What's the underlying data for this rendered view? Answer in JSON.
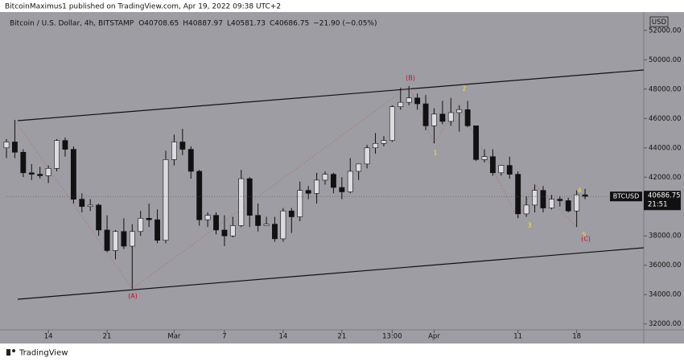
{
  "chart_data": {
    "type": "candlestick",
    "header": "BitcoinMaximus1 published on TradingView.com, Apr 19, 2022 09:38 UTC+2",
    "symbol_label": "Bitcoin / U.S. Dollar, 4h, BITSTAMP",
    "legend_values": [
      "O40708.65",
      "H40887.97",
      "L40581.73",
      "C40686.75",
      "−21.90 (−0.05%)"
    ],
    "currency": "USD",
    "ticker": "BTCUSD",
    "last_price": {
      "value": 40686.75,
      "label": "40686.75"
    },
    "countdown": "21:51",
    "footer": "TradingView",
    "annotations": [
      "(A)",
      "(B)",
      "1",
      "2",
      "3",
      "4",
      "5",
      "(C)"
    ],
    "xlim": [
      0,
      76
    ],
    "xticks": [
      {
        "value": 5,
        "label": "14"
      },
      {
        "value": 12,
        "label": "21"
      },
      {
        "value": 20,
        "label": "Mar"
      },
      {
        "value": 26,
        "label": "7"
      },
      {
        "value": 33,
        "label": "14"
      },
      {
        "value": 40,
        "label": "21"
      },
      {
        "value": 46,
        "label": "13:00"
      },
      {
        "value": 51,
        "label": "Apr"
      },
      {
        "value": 61,
        "label": "11"
      },
      {
        "value": 68,
        "label": "18"
      }
    ],
    "ylim": [
      31600,
      53250
    ],
    "yticks": [
      {
        "value": 32000,
        "label": "32000.00"
      },
      {
        "value": 34000,
        "label": "34000.00"
      },
      {
        "value": 36000,
        "label": "36000.00"
      },
      {
        "value": 38000,
        "label": "38000.00"
      },
      {
        "value": 40000,
        "label": "40000.00"
      },
      {
        "value": 42000,
        "label": "42000.00"
      },
      {
        "value": 44000,
        "label": "44000.00"
      },
      {
        "value": 46000,
        "label": "46000.00"
      },
      {
        "value": 48000,
        "label": "48000.00"
      },
      {
        "value": 50000,
        "label": "50000.00"
      },
      {
        "value": 52000,
        "label": "52000.00"
      }
    ],
    "up_color": "#dcdce0",
    "down_color": "#111111",
    "candles": {
      "open": [
        44000,
        44400,
        43700,
        42300,
        42200,
        42100,
        42600,
        44500,
        43900,
        40500,
        40000,
        40100,
        38400,
        37000,
        38300,
        37300,
        38300,
        39200,
        39100,
        37700,
        43200,
        44400,
        43900,
        42400,
        39100,
        39400,
        38400,
        38000,
        38700,
        41900,
        39400,
        38700,
        38800,
        37800,
        39700,
        39300,
        41100,
        40900,
        41800,
        42200,
        41300,
        41000,
        42400,
        42900,
        44000,
        44300,
        44500,
        46800,
        47100,
        47400,
        47000,
        45500,
        46300,
        45800,
        46400,
        46600,
        45500,
        43200,
        43400,
        42300,
        42800,
        42200,
        39500,
        40100,
        41100,
        39900,
        40500,
        40400,
        39700,
        40800
      ],
      "high": [
        44600,
        45900,
        43900,
        42900,
        42700,
        42800,
        44600,
        44700,
        44100,
        40900,
        40500,
        40200,
        39400,
        38400,
        39200,
        38800,
        39700,
        40200,
        39800,
        43800,
        44900,
        45300,
        44100,
        42500,
        39600,
        39600,
        39400,
        39300,
        42500,
        42000,
        40200,
        39300,
        39300,
        39900,
        39900,
        41700,
        41400,
        42300,
        42400,
        42300,
        42000,
        43300,
        42900,
        44200,
        45000,
        44800,
        46900,
        48100,
        48200,
        47700,
        47600,
        46700,
        47200,
        47400,
        46900,
        47200,
        45500,
        43900,
        43900,
        42800,
        43400,
        42400,
        40700,
        41500,
        41400,
        40800,
        40700,
        40600,
        41100,
        41200
      ],
      "low": [
        43300,
        43300,
        42000,
        41800,
        41900,
        41600,
        42400,
        43400,
        40200,
        39600,
        39700,
        38000,
        36900,
        36400,
        37100,
        34400,
        38000,
        38600,
        37500,
        37500,
        42800,
        43500,
        41900,
        38700,
        38600,
        38100,
        37300,
        37900,
        38600,
        38600,
        38300,
        38700,
        37600,
        37600,
        38200,
        39000,
        40500,
        40200,
        41500,
        40900,
        40500,
        40900,
        41800,
        42600,
        43600,
        44100,
        44400,
        46600,
        46900,
        46600,
        45200,
        44300,
        45600,
        45500,
        45100,
        45400,
        43100,
        43000,
        42100,
        42100,
        41900,
        39200,
        39300,
        39600,
        39600,
        39800,
        40000,
        39600,
        38600,
        40500
      ],
      "close": [
        44400,
        43700,
        42300,
        42200,
        42100,
        42600,
        44500,
        43900,
        40500,
        40000,
        40100,
        38400,
        37000,
        38300,
        37300,
        38300,
        39200,
        39100,
        37700,
        43200,
        44400,
        43900,
        42400,
        39100,
        39400,
        38400,
        38000,
        38700,
        41900,
        39400,
        38700,
        38800,
        37800,
        39700,
        39300,
        41100,
        40900,
        41800,
        42200,
        41300,
        41000,
        42400,
        42900,
        44000,
        44300,
        44500,
        46800,
        47100,
        47400,
        47000,
        45500,
        46300,
        45800,
        46400,
        46600,
        45500,
        43200,
        43400,
        42300,
        42800,
        42200,
        39500,
        40100,
        41100,
        39900,
        40500,
        40400,
        39700,
        40800,
        40687
      ]
    }
  }
}
